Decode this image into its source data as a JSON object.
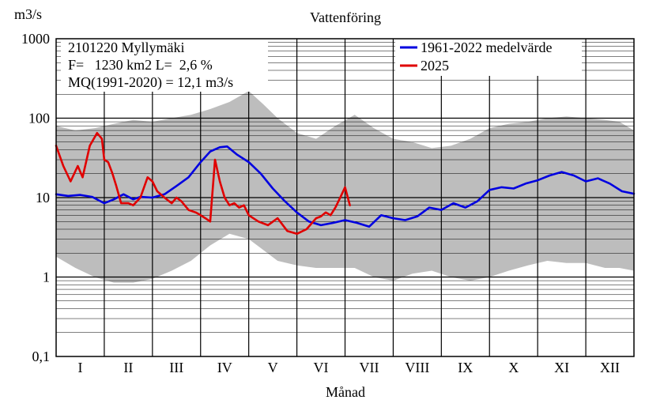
{
  "chart_data": {
    "type": "line",
    "title": "Vattenföring",
    "xlabel": "Månad",
    "ylabel": "m3/s",
    "yscale": "log",
    "ylim": [
      0.1,
      1000
    ],
    "yticks": [
      "1000",
      "100",
      "10",
      "1",
      "0,1"
    ],
    "xlim": [
      0,
      12
    ],
    "months": [
      "I",
      "II",
      "III",
      "IV",
      "V",
      "VI",
      "VII",
      "VIII",
      "IX",
      "X",
      "XI",
      "XII"
    ],
    "info": {
      "station": "2101220 Myllymäki",
      "area": "F=   1230 km2 L=  2,6 %",
      "mq": "MQ(1991-2020) = 12,1 m3/s"
    },
    "colors": {
      "mean": "#0000e0",
      "current": "#e00000",
      "range": "#bdbdbd"
    },
    "range_band": {
      "x": [
        0,
        0.4,
        0.8,
        1.2,
        1.6,
        2.0,
        2.4,
        2.8,
        3.2,
        3.6,
        4.0,
        4.3,
        4.6,
        5.0,
        5.4,
        5.8,
        6.2,
        6.6,
        7.0,
        7.4,
        7.8,
        8.2,
        8.6,
        9.0,
        9.4,
        9.8,
        10.2,
        10.6,
        11.0,
        11.4,
        11.7,
        12
      ],
      "min": [
        1.8,
        1.3,
        1.0,
        0.85,
        0.85,
        0.95,
        1.2,
        1.6,
        2.5,
        3.5,
        3.0,
        2.2,
        1.6,
        1.4,
        1.3,
        1.3,
        1.3,
        1.0,
        0.9,
        1.1,
        1.2,
        1.0,
        0.9,
        1.0,
        1.2,
        1.4,
        1.6,
        1.5,
        1.5,
        1.3,
        1.3,
        1.2
      ],
      "max": [
        80,
        70,
        75,
        85,
        95,
        90,
        100,
        110,
        130,
        160,
        220,
        150,
        100,
        65,
        55,
        80,
        110,
        75,
        55,
        50,
        42,
        45,
        55,
        75,
        85,
        90,
        100,
        105,
        100,
        95,
        90,
        70
      ]
    },
    "series": [
      {
        "name": "1961-2022 medelvärde",
        "color": "#0000e0",
        "x": [
          0,
          0.25,
          0.5,
          0.75,
          1.0,
          1.2,
          1.4,
          1.6,
          1.75,
          2.0,
          2.25,
          2.5,
          2.75,
          3.0,
          3.2,
          3.4,
          3.55,
          3.75,
          4.0,
          4.25,
          4.5,
          4.75,
          5.0,
          5.25,
          5.5,
          5.75,
          6.0,
          6.25,
          6.5,
          6.75,
          7.0,
          7.25,
          7.5,
          7.75,
          8.0,
          8.25,
          8.5,
          8.75,
          9.0,
          9.25,
          9.5,
          9.75,
          10.0,
          10.25,
          10.5,
          10.75,
          11.0,
          11.25,
          11.5,
          11.75,
          12.0
        ],
        "values": [
          11,
          10.5,
          10.8,
          10.2,
          8.5,
          9.5,
          11.0,
          9.5,
          10.2,
          10.0,
          11.0,
          14.0,
          18.0,
          28.0,
          38.0,
          43.0,
          44.0,
          35.0,
          28.0,
          20.0,
          13.0,
          9.0,
          6.5,
          5.0,
          4.5,
          4.8,
          5.2,
          4.8,
          4.3,
          6.0,
          5.5,
          5.2,
          5.8,
          7.5,
          7.0,
          8.5,
          7.5,
          9.0,
          12.5,
          13.5,
          13.0,
          15.0,
          16.5,
          19.0,
          21.0,
          19.0,
          16.0,
          17.5,
          15.0,
          12.0,
          11.2
        ]
      },
      {
        "name": "2025",
        "color": "#e00000",
        "x": [
          0,
          0.15,
          0.3,
          0.45,
          0.55,
          0.7,
          0.85,
          0.95,
          1.0,
          1.08,
          1.17,
          1.25,
          1.35,
          1.5,
          1.6,
          1.75,
          1.9,
          2.0,
          2.1,
          2.25,
          2.4,
          2.5,
          2.6,
          2.75,
          2.9,
          3.0,
          3.1,
          3.2,
          3.3,
          3.4,
          3.5,
          3.6,
          3.7,
          3.8,
          3.9,
          4.0,
          4.2,
          4.4,
          4.6,
          4.8,
          5.0,
          5.2,
          5.4,
          5.5,
          5.6,
          5.7,
          5.8,
          5.9,
          6.0,
          6.1
        ],
        "values": [
          45,
          25,
          16,
          25,
          18,
          45,
          65,
          55,
          30,
          28,
          20,
          14,
          8.5,
          8.5,
          8.0,
          10.0,
          18.0,
          16.0,
          12.0,
          10.0,
          8.5,
          10.0,
          9.0,
          7.0,
          6.5,
          6.0,
          5.5,
          5.0,
          30.0,
          16.0,
          10.0,
          8.0,
          8.5,
          7.5,
          8.0,
          6.0,
          5.0,
          4.5,
          5.5,
          3.8,
          3.5,
          4.0,
          5.5,
          5.8,
          6.5,
          6.0,
          7.5,
          10.0,
          13.5,
          8.0
        ]
      }
    ],
    "grid": true,
    "legend_position": "top-right"
  }
}
